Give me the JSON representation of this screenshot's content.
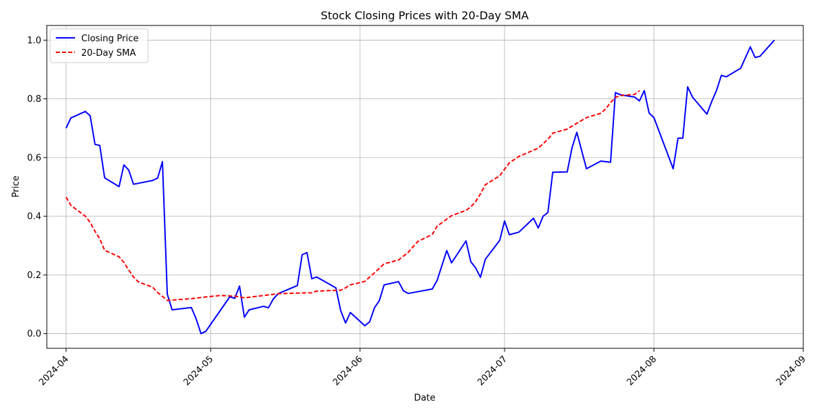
{
  "chart_data": {
    "type": "line",
    "title": "Stock Closing Prices with 20-Day SMA",
    "xlabel": "Date",
    "ylabel": "Price",
    "xlim": [
      "2024-03-28",
      "2024-09-01"
    ],
    "ylim": [
      -0.05,
      1.05
    ],
    "x_ticks": [
      "2024-04",
      "2024-05",
      "2024-06",
      "2024-07",
      "2024-08",
      "2024-09"
    ],
    "y_ticks": [
      "0.0",
      "0.2",
      "0.4",
      "0.6",
      "0.8",
      "1.0"
    ],
    "grid": true,
    "legend_position": "top-left",
    "colors": {
      "closing": "#0000ff",
      "sma": "#ff0000",
      "grid": "#b0b0b0"
    },
    "series": [
      {
        "name": "Closing Price",
        "style": "solid",
        "points": [
          [
            "2024-04-01",
            0.7
          ],
          [
            "2024-04-02",
            0.735
          ],
          [
            "2024-04-05",
            0.757
          ],
          [
            "2024-04-06",
            0.742
          ],
          [
            "2024-04-07",
            0.645
          ],
          [
            "2024-04-08",
            0.641
          ],
          [
            "2024-04-09",
            0.531
          ],
          [
            "2024-04-12",
            0.501
          ],
          [
            "2024-04-13",
            0.575
          ],
          [
            "2024-04-14",
            0.557
          ],
          [
            "2024-04-15",
            0.509
          ],
          [
            "2024-04-19",
            0.522
          ],
          [
            "2024-04-20",
            0.53
          ],
          [
            "2024-04-21",
            0.586
          ],
          [
            "2024-04-22",
            0.135
          ],
          [
            "2024-04-23",
            0.081
          ],
          [
            "2024-04-27",
            0.089
          ],
          [
            "2024-04-28",
            0.05
          ],
          [
            "2024-04-29",
            0.0
          ],
          [
            "2024-04-30",
            0.008
          ],
          [
            "2024-05-05",
            0.126
          ],
          [
            "2024-05-06",
            0.12
          ],
          [
            "2024-05-07",
            0.162
          ],
          [
            "2024-05-08",
            0.056
          ],
          [
            "2024-05-09",
            0.081
          ],
          [
            "2024-05-12",
            0.093
          ],
          [
            "2024-05-13",
            0.088
          ],
          [
            "2024-05-14",
            0.118
          ],
          [
            "2024-05-15",
            0.136
          ],
          [
            "2024-05-19",
            0.164
          ],
          [
            "2024-05-20",
            0.269
          ],
          [
            "2024-05-21",
            0.276
          ],
          [
            "2024-05-22",
            0.187
          ],
          [
            "2024-05-23",
            0.193
          ],
          [
            "2024-05-27",
            0.156
          ],
          [
            "2024-05-28",
            0.078
          ],
          [
            "2024-05-29",
            0.036
          ],
          [
            "2024-05-30",
            0.072
          ],
          [
            "2024-06-02",
            0.027
          ],
          [
            "2024-06-03",
            0.04
          ],
          [
            "2024-06-04",
            0.088
          ],
          [
            "2024-06-05",
            0.112
          ],
          [
            "2024-06-06",
            0.166
          ],
          [
            "2024-06-09",
            0.177
          ],
          [
            "2024-06-10",
            0.146
          ],
          [
            "2024-06-11",
            0.137
          ],
          [
            "2024-06-16",
            0.152
          ],
          [
            "2024-06-17",
            0.181
          ],
          [
            "2024-06-19",
            0.283
          ],
          [
            "2024-06-20",
            0.241
          ],
          [
            "2024-06-23",
            0.316
          ],
          [
            "2024-06-24",
            0.245
          ],
          [
            "2024-06-25",
            0.224
          ],
          [
            "2024-06-26",
            0.192
          ],
          [
            "2024-06-27",
            0.253
          ],
          [
            "2024-06-30",
            0.318
          ],
          [
            "2024-07-01",
            0.384
          ],
          [
            "2024-07-02",
            0.337
          ],
          [
            "2024-07-04",
            0.346
          ],
          [
            "2024-07-07",
            0.393
          ],
          [
            "2024-07-08",
            0.36
          ],
          [
            "2024-07-09",
            0.4
          ],
          [
            "2024-07-10",
            0.413
          ],
          [
            "2024-07-11",
            0.55
          ],
          [
            "2024-07-14",
            0.551
          ],
          [
            "2024-07-15",
            0.633
          ],
          [
            "2024-07-16",
            0.686
          ],
          [
            "2024-07-18",
            0.562
          ],
          [
            "2024-07-21",
            0.588
          ],
          [
            "2024-07-23",
            0.584
          ],
          [
            "2024-07-24",
            0.821
          ],
          [
            "2024-07-25",
            0.814
          ],
          [
            "2024-07-28",
            0.806
          ],
          [
            "2024-07-29",
            0.793
          ],
          [
            "2024-07-30",
            0.828
          ],
          [
            "2024-07-31",
            0.752
          ],
          [
            "2024-08-01",
            0.736
          ],
          [
            "2024-08-05",
            0.562
          ],
          [
            "2024-08-06",
            0.666
          ],
          [
            "2024-08-07",
            0.666
          ],
          [
            "2024-08-08",
            0.841
          ],
          [
            "2024-08-09",
            0.806
          ],
          [
            "2024-08-12",
            0.748
          ],
          [
            "2024-08-13",
            0.791
          ],
          [
            "2024-08-14",
            0.829
          ],
          [
            "2024-08-15",
            0.88
          ],
          [
            "2024-08-16",
            0.875
          ],
          [
            "2024-08-19",
            0.904
          ],
          [
            "2024-08-21",
            0.977
          ],
          [
            "2024-08-22",
            0.941
          ],
          [
            "2024-08-23",
            0.945
          ],
          [
            "2024-08-26",
            1.0
          ]
        ]
      },
      {
        "name": "20-Day SMA",
        "style": "dashed",
        "points": [
          [
            "2024-04-01",
            0.465
          ],
          [
            "2024-04-02",
            0.437
          ],
          [
            "2024-04-05",
            0.4
          ],
          [
            "2024-04-06",
            0.379
          ],
          [
            "2024-04-07",
            0.349
          ],
          [
            "2024-04-08",
            0.323
          ],
          [
            "2024-04-09",
            0.284
          ],
          [
            "2024-04-12",
            0.262
          ],
          [
            "2024-04-13",
            0.243
          ],
          [
            "2024-04-14",
            0.217
          ],
          [
            "2024-04-15",
            0.193
          ],
          [
            "2024-04-16",
            0.176
          ],
          [
            "2024-04-19",
            0.158
          ],
          [
            "2024-04-20",
            0.14
          ],
          [
            "2024-04-21",
            0.127
          ],
          [
            "2024-04-22",
            0.113
          ],
          [
            "2024-04-27",
            0.119
          ],
          [
            "2024-04-30",
            0.125
          ],
          [
            "2024-05-03",
            0.13
          ],
          [
            "2024-05-06",
            0.128
          ],
          [
            "2024-05-08",
            0.122
          ],
          [
            "2024-05-12",
            0.13
          ],
          [
            "2024-05-15",
            0.136
          ],
          [
            "2024-05-19",
            0.138
          ],
          [
            "2024-05-22",
            0.139
          ],
          [
            "2024-05-23",
            0.145
          ],
          [
            "2024-05-28",
            0.148
          ],
          [
            "2024-05-29",
            0.156
          ],
          [
            "2024-05-30",
            0.166
          ],
          [
            "2024-06-02",
            0.178
          ],
          [
            "2024-06-04",
            0.207
          ],
          [
            "2024-06-06",
            0.238
          ],
          [
            "2024-06-09",
            0.251
          ],
          [
            "2024-06-11",
            0.277
          ],
          [
            "2024-06-13",
            0.314
          ],
          [
            "2024-06-16",
            0.338
          ],
          [
            "2024-06-17",
            0.366
          ],
          [
            "2024-06-20",
            0.402
          ],
          [
            "2024-06-23",
            0.42
          ],
          [
            "2024-06-24",
            0.432
          ],
          [
            "2024-06-25",
            0.45
          ],
          [
            "2024-06-26",
            0.476
          ],
          [
            "2024-06-27",
            0.507
          ],
          [
            "2024-06-30",
            0.538
          ],
          [
            "2024-07-02",
            0.582
          ],
          [
            "2024-07-04",
            0.604
          ],
          [
            "2024-07-07",
            0.625
          ],
          [
            "2024-07-08",
            0.632
          ],
          [
            "2024-07-10",
            0.662
          ],
          [
            "2024-07-11",
            0.683
          ],
          [
            "2024-07-14",
            0.697
          ],
          [
            "2024-07-16",
            0.717
          ],
          [
            "2024-07-18",
            0.736
          ],
          [
            "2024-07-21",
            0.751
          ],
          [
            "2024-07-22",
            0.766
          ],
          [
            "2024-07-23",
            0.787
          ],
          [
            "2024-07-24",
            0.805
          ],
          [
            "2024-07-25",
            0.811
          ],
          [
            "2024-07-28",
            0.815
          ],
          [
            "2024-07-29",
            0.828
          ]
        ]
      }
    ]
  }
}
